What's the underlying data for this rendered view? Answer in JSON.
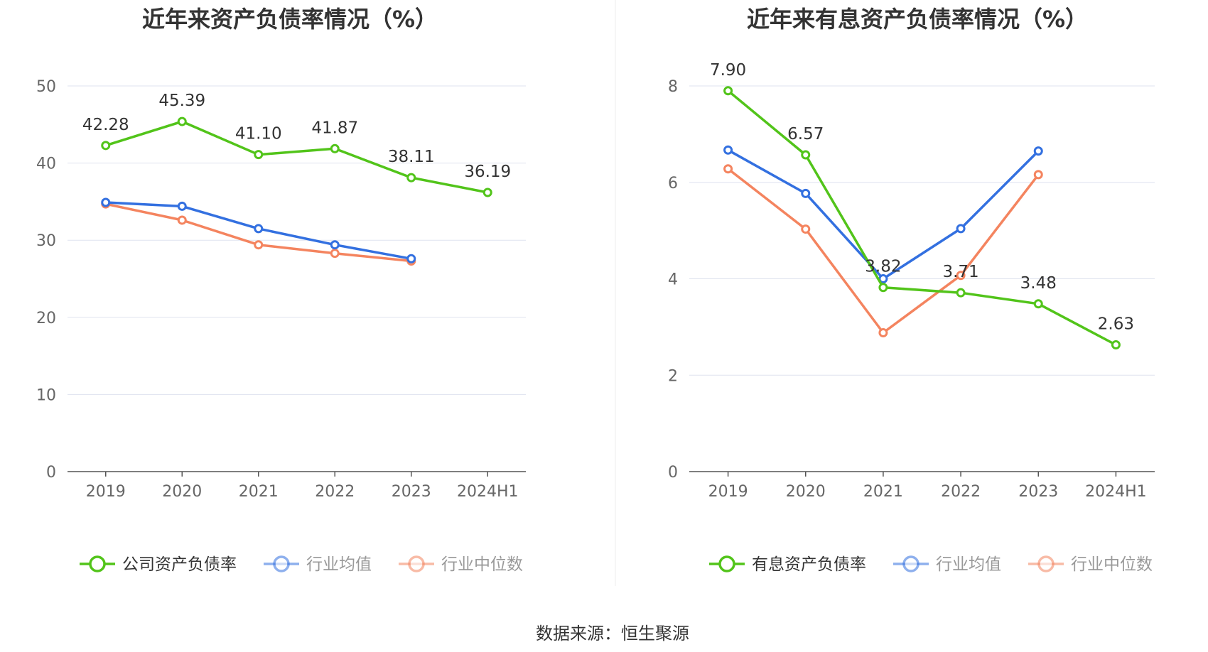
{
  "source_label": "数据来源：恒生聚源",
  "chart_data": [
    {
      "type": "line",
      "title": "近年来资产负债率情况（%）",
      "categories": [
        "2019",
        "2020",
        "2021",
        "2022",
        "2023",
        "2024H1"
      ],
      "ylim": [
        0,
        50
      ],
      "yticks": [
        0,
        10,
        20,
        30,
        40,
        50
      ],
      "grid": true,
      "legend_position": "bottom",
      "series": [
        {
          "name": "公司资产负债率",
          "color": "#52c41a",
          "values": [
            42.28,
            45.39,
            41.1,
            41.87,
            38.11,
            36.19
          ],
          "labels": [
            "42.28",
            "45.39",
            "41.10",
            "41.87",
            "38.11",
            "36.19"
          ]
        },
        {
          "name": "行业均值",
          "color": "#3370e0",
          "values": [
            34.9,
            34.4,
            31.5,
            29.4,
            27.6,
            null
          ]
        },
        {
          "name": "行业中位数",
          "color": "#f4845f",
          "values": [
            34.7,
            32.6,
            29.4,
            28.3,
            27.3,
            null
          ]
        }
      ]
    },
    {
      "type": "line",
      "title": "近年来有息资产负债率情况（%）",
      "categories": [
        "2019",
        "2020",
        "2021",
        "2022",
        "2023",
        "2024H1"
      ],
      "ylim": [
        0,
        8
      ],
      "yticks": [
        0,
        2,
        4,
        6,
        8
      ],
      "grid": true,
      "legend_position": "bottom",
      "series": [
        {
          "name": "有息资产负债率",
          "color": "#52c41a",
          "values": [
            7.9,
            6.57,
            3.82,
            3.71,
            3.48,
            2.63
          ],
          "labels": [
            "7.90",
            "6.57",
            "3.82",
            "3.71",
            "3.48",
            "2.63"
          ]
        },
        {
          "name": "行业均值",
          "color": "#3370e0",
          "values": [
            6.67,
            5.77,
            4.0,
            5.04,
            6.65,
            null
          ]
        },
        {
          "name": "行业中位数",
          "color": "#f4845f",
          "values": [
            6.28,
            5.03,
            2.88,
            4.07,
            6.16,
            null
          ]
        }
      ]
    }
  ]
}
